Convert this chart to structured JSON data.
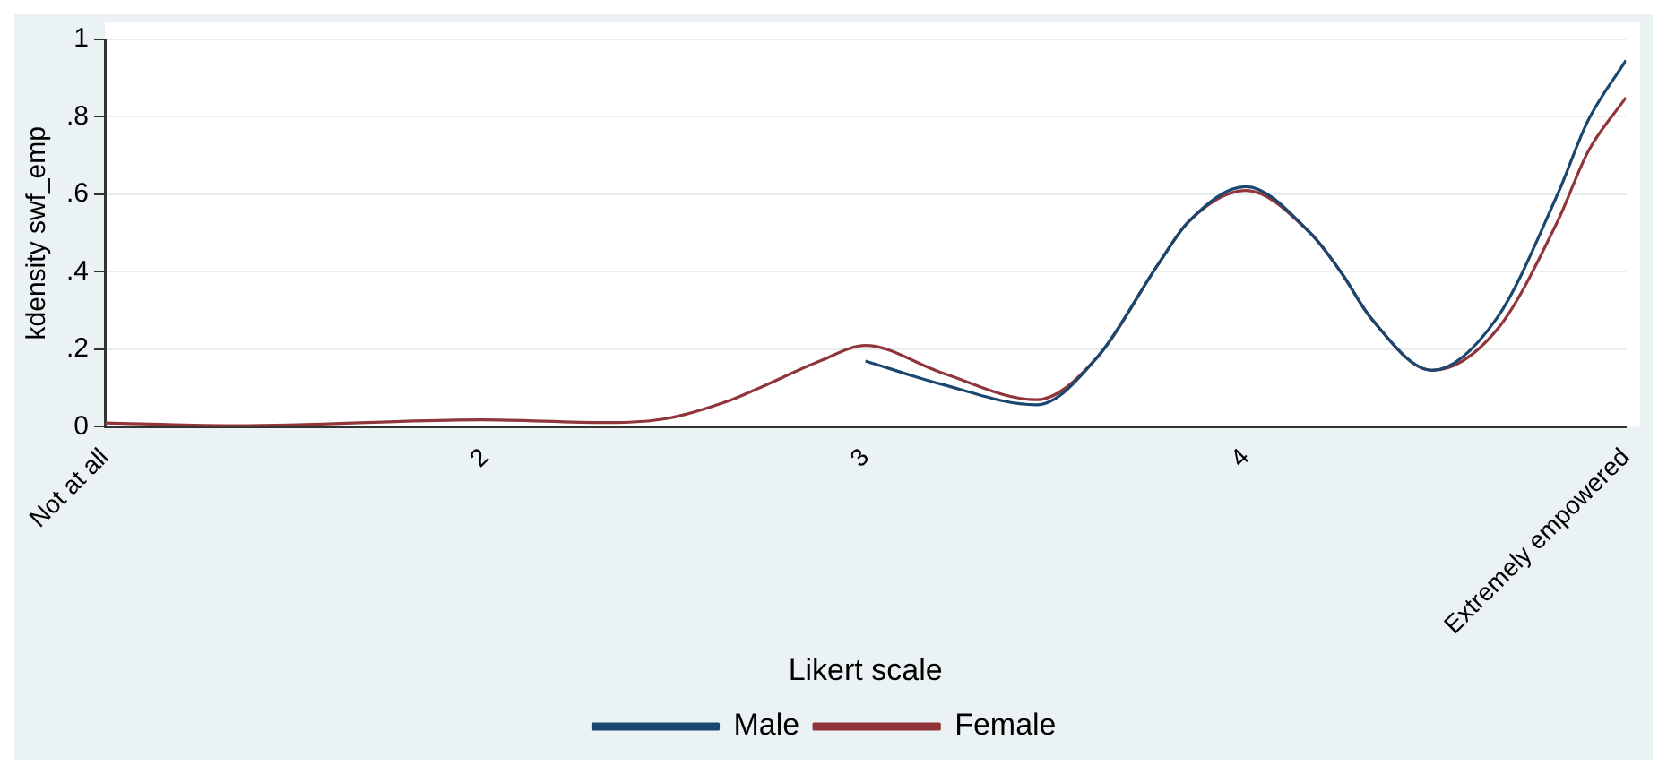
{
  "chart_data": {
    "type": "line",
    "xlabel": "Likert scale",
    "ylabel": "kdensity swf_emp",
    "xlim": [
      1,
      5
    ],
    "xticks": [
      {
        "value": 1,
        "label": "Not at all"
      },
      2,
      3,
      4,
      {
        "value": 5,
        "label": "Extremely empowered"
      }
    ],
    "ylim": [
      0,
      1
    ],
    "yticks": [
      0,
      {
        "value": 0.2,
        "label": ".2"
      },
      {
        "value": 0.4,
        "label": ".4"
      },
      {
        "value": 0.6,
        "label": ".6"
      },
      {
        "value": 0.8,
        "label": ".8"
      },
      1
    ],
    "grid": "y",
    "legend": "bottom",
    "marker": "none",
    "line_style": "solid",
    "series": [
      {
        "name": "Male",
        "color": "#1a476f",
        "x": [
          3,
          3.2,
          3.45,
          3.61,
          3.77,
          3.85,
          4,
          4.17,
          4.25,
          4.33,
          4.49,
          4.66,
          4.82,
          4.9,
          5
        ],
        "values": [
          0.17,
          0.11,
          0.057,
          0.18,
          0.42,
          0.53,
          0.62,
          0.5,
          0.4,
          0.28,
          0.146,
          0.28,
          0.6,
          0.79,
          0.946
        ]
      },
      {
        "name": "Female",
        "color": "#90353b",
        "x": [
          1,
          1.35,
          1.99,
          2.32,
          2.48,
          2.64,
          2.72,
          2.88,
          3,
          3.2,
          3.45,
          3.61,
          3.77,
          3.85,
          4,
          4.17,
          4.25,
          4.33,
          4.49,
          4.66,
          4.82,
          4.9,
          5
        ],
        "values": [
          0.01,
          0.003,
          0.018,
          0.011,
          0.022,
          0.067,
          0.1,
          0.17,
          0.21,
          0.14,
          0.07,
          0.18,
          0.42,
          0.53,
          0.61,
          0.5,
          0.4,
          0.28,
          0.146,
          0.25,
          0.53,
          0.71,
          0.85
        ]
      }
    ]
  }
}
